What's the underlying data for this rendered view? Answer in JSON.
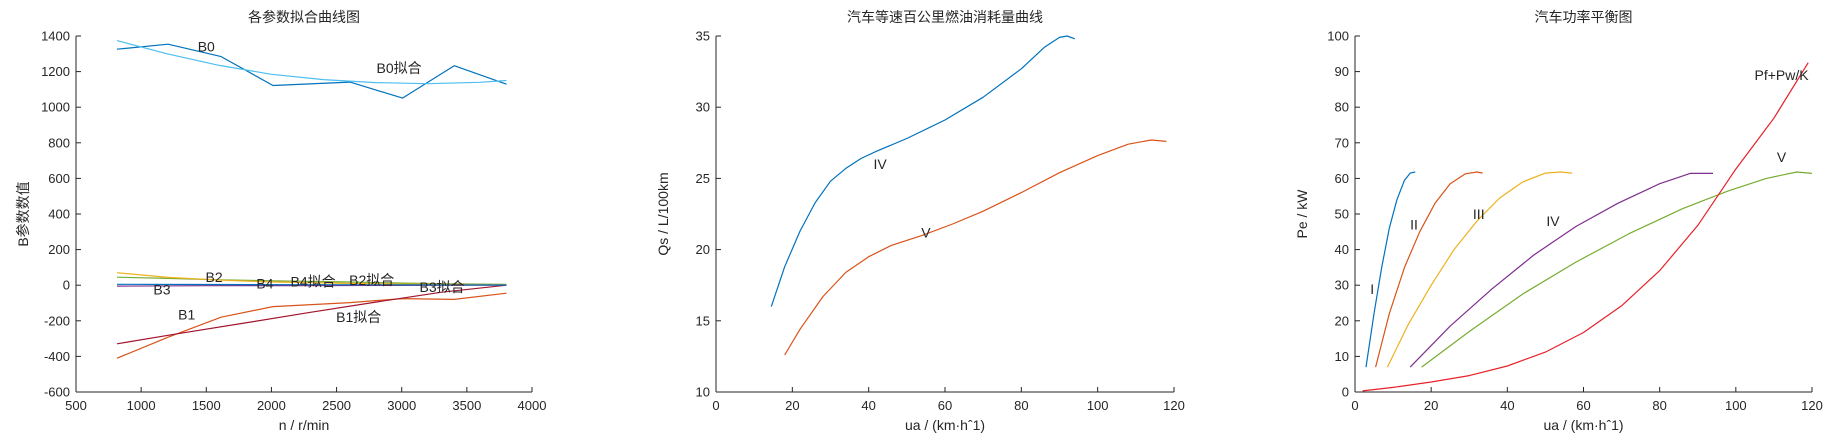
{
  "chart_data": [
    {
      "type": "line",
      "title": "各参数拟合曲线图",
      "xlabel": "n / r/min",
      "ylabel": "B参数数值",
      "xlim": [
        500,
        4000
      ],
      "ylim": [
        -600,
        1400
      ],
      "xticks": [
        500,
        1000,
        1500,
        2000,
        2500,
        3000,
        3500,
        4000
      ],
      "yticks": [
        -600,
        -400,
        -200,
        0,
        200,
        400,
        600,
        800,
        1000,
        1200,
        1400
      ],
      "grid": false,
      "legend": "none",
      "series": [
        {
          "color": "#0072BD",
          "points": [
            [
              815,
              1326
            ],
            [
              1207,
              1354
            ],
            [
              1614,
              1284
            ],
            [
              2012,
              1122
            ],
            [
              2603,
              1141
            ],
            [
              3006,
              1051
            ],
            [
              3403,
              1233
            ],
            [
              3804,
              1129
            ]
          ]
        },
        {
          "color": "#4DBEEE",
          "points": [
            [
              815,
              1374
            ],
            [
              1200,
              1300
            ],
            [
              1600,
              1235
            ],
            [
              2000,
              1185
            ],
            [
              2400,
              1155
            ],
            [
              2800,
              1138
            ],
            [
              3200,
              1132
            ],
            [
              3600,
              1140
            ],
            [
              3804,
              1150
            ]
          ]
        },
        {
          "color": "#D95319",
          "points": [
            [
              815,
              -410
            ],
            [
              1207,
              -292
            ],
            [
              1614,
              -180
            ],
            [
              2012,
              -120
            ],
            [
              2603,
              -98
            ],
            [
              3006,
              -75
            ],
            [
              3403,
              -80
            ],
            [
              3804,
              -45
            ]
          ]
        },
        {
          "color": "#A2142F",
          "points": [
            [
              815,
              -329
            ],
            [
              1300,
              -270
            ],
            [
              1800,
              -212
            ],
            [
              2300,
              -152
            ],
            [
              2800,
              -95
            ],
            [
              3300,
              -40
            ],
            [
              3804,
              0
            ]
          ]
        },
        {
          "color": "#7E2F8E",
          "points": [
            [
              815,
              -5
            ],
            [
              1500,
              -3
            ],
            [
              2200,
              -2
            ],
            [
              2900,
              -1
            ],
            [
              3804,
              0
            ]
          ]
        },
        {
          "color": "#77AC30",
          "points": [
            [
              815,
              45
            ],
            [
              1207,
              38
            ],
            [
              1614,
              30
            ],
            [
              2012,
              25
            ],
            [
              2603,
              18
            ],
            [
              3006,
              12
            ],
            [
              3403,
              8
            ],
            [
              3804,
              5
            ]
          ]
        },
        {
          "color": "#EDB120",
          "points": [
            [
              815,
              70
            ],
            [
              1207,
              44
            ],
            [
              1614,
              28
            ],
            [
              2012,
              18
            ],
            [
              2603,
              10
            ],
            [
              3006,
              6
            ],
            [
              3403,
              4
            ],
            [
              3804,
              2
            ]
          ]
        },
        {
          "color": "#0072BD",
          "points": [
            [
              815,
              5
            ],
            [
              1500,
              4
            ],
            [
              2200,
              3
            ],
            [
              2900,
              2
            ],
            [
              3804,
              1
            ]
          ]
        }
      ],
      "annotations": [
        {
          "text": "B0",
          "x": 1500,
          "y": 1340
        },
        {
          "text": "B0拟合",
          "x": 2980,
          "y": 1220
        },
        {
          "text": "B2",
          "x": 1560,
          "y": 45
        },
        {
          "text": "B4",
          "x": 1950,
          "y": 10
        },
        {
          "text": "B4拟合",
          "x": 2320,
          "y": 20
        },
        {
          "text": "B2拟合",
          "x": 2770,
          "y": 30
        },
        {
          "text": "B3",
          "x": 1160,
          "y": -25
        },
        {
          "text": "B3拟合",
          "x": 3310,
          "y": -10
        },
        {
          "text": "B1",
          "x": 1350,
          "y": -165
        },
        {
          "text": "B1拟合",
          "x": 2670,
          "y": -180
        }
      ]
    },
    {
      "type": "line",
      "title": "汽车等速百公里燃油消耗量曲线",
      "xlabel": "ua / (km·hˆ1)",
      "ylabel": "Qs / L/100km",
      "xlim": [
        0,
        120
      ],
      "ylim": [
        10,
        35
      ],
      "xticks": [
        0,
        20,
        40,
        60,
        80,
        100,
        120
      ],
      "yticks": [
        10,
        15,
        20,
        25,
        30,
        35
      ],
      "grid": false,
      "legend": "none",
      "series": [
        {
          "name": "IV",
          "color": "#0072BD",
          "points": [
            [
              14.5,
              16
            ],
            [
              18,
              18.8
            ],
            [
              22,
              21.3
            ],
            [
              26,
              23.3
            ],
            [
              30,
              24.8
            ],
            [
              34,
              25.7
            ],
            [
              38,
              26.4
            ],
            [
              42,
              26.9
            ],
            [
              50,
              27.8
            ],
            [
              60,
              29.1
            ],
            [
              70,
              30.7
            ],
            [
              80,
              32.7
            ],
            [
              86,
              34.2
            ],
            [
              90,
              34.9
            ],
            [
              92,
              35
            ],
            [
              94,
              34.8
            ]
          ]
        },
        {
          "name": "V",
          "color": "#D95319",
          "points": [
            [
              18,
              12.6
            ],
            [
              22,
              14.4
            ],
            [
              28,
              16.7
            ],
            [
              34,
              18.4
            ],
            [
              40,
              19.5
            ],
            [
              46,
              20.3
            ],
            [
              54,
              21.0
            ],
            [
              62,
              21.8
            ],
            [
              70,
              22.7
            ],
            [
              80,
              24.0
            ],
            [
              90,
              25.4
            ],
            [
              100,
              26.6
            ],
            [
              108,
              27.4
            ],
            [
              114,
              27.7
            ],
            [
              118,
              27.6
            ]
          ]
        }
      ],
      "annotations": [
        {
          "text": "IV",
          "x": 43,
          "y": 26
        },
        {
          "text": "V",
          "x": 55,
          "y": 21.2
        }
      ]
    },
    {
      "type": "line",
      "title": "汽车功率平衡图",
      "xlabel": "ua / (km·hˆ1)",
      "ylabel": "Pe / kW",
      "xlim": [
        0,
        120
      ],
      "ylim": [
        0,
        100
      ],
      "xticks": [
        0,
        20,
        40,
        60,
        80,
        100,
        120
      ],
      "yticks": [
        0,
        10,
        20,
        30,
        40,
        50,
        60,
        70,
        80,
        90,
        100
      ],
      "grid": false,
      "legend": "none",
      "series": [
        {
          "name": "I",
          "color": "#0072BD",
          "points": [
            [
              2.9,
              7
            ],
            [
              5,
              22
            ],
            [
              7,
              35
            ],
            [
              9,
              46
            ],
            [
              11,
              54
            ],
            [
              13,
              59.5
            ],
            [
              14.5,
              61.5
            ],
            [
              15.8,
              61.8
            ]
          ]
        },
        {
          "name": "II",
          "color": "#D95319",
          "points": [
            [
              5.4,
              7
            ],
            [
              9,
              22
            ],
            [
              13,
              35
            ],
            [
              17,
              45
            ],
            [
              21,
              53
            ],
            [
              25,
              58.5
            ],
            [
              29,
              61.3
            ],
            [
              32,
              61.8
            ],
            [
              33.5,
              61.5
            ]
          ]
        },
        {
          "name": "III",
          "color": "#EDB120",
          "points": [
            [
              8.5,
              7
            ],
            [
              14,
              19
            ],
            [
              20,
              30
            ],
            [
              26,
              40
            ],
            [
              32,
              48
            ],
            [
              38,
              54.5
            ],
            [
              44,
              59
            ],
            [
              50,
              61.5
            ],
            [
              54,
              61.8
            ],
            [
              57,
              61.5
            ]
          ]
        },
        {
          "name": "IV",
          "color": "#7E2F8E",
          "points": [
            [
              14.5,
              7
            ],
            [
              25,
              18.5
            ],
            [
              36,
              29
            ],
            [
              47,
              38.5
            ],
            [
              58,
              46.5
            ],
            [
              69,
              53
            ],
            [
              80,
              58.5
            ],
            [
              88,
              61.4
            ],
            [
              94,
              61.4
            ]
          ]
        },
        {
          "name": "V",
          "color": "#77AC30",
          "points": [
            [
              17.5,
              7
            ],
            [
              30,
              17
            ],
            [
              44,
              27.5
            ],
            [
              58,
              36.5
            ],
            [
              72,
              44.5
            ],
            [
              86,
              51.5
            ],
            [
              98,
              56.5
            ],
            [
              108,
              60
            ],
            [
              116,
              61.8
            ],
            [
              120,
              61.4
            ]
          ]
        },
        {
          "name": "Pf+Pw/K",
          "color": "#E8202A",
          "points": [
            [
              2,
              0.3
            ],
            [
              10,
              1.3
            ],
            [
              20,
              2.8
            ],
            [
              30,
              4.6
            ],
            [
              40,
              7.3
            ],
            [
              50,
              11.2
            ],
            [
              60,
              16.7
            ],
            [
              70,
              24.2
            ],
            [
              80,
              34.1
            ],
            [
              90,
              46.8
            ],
            [
              100,
              62.6
            ],
            [
              110,
              76.9
            ],
            [
              119,
              92.5
            ]
          ]
        }
      ],
      "annotations": [
        {
          "text": "I",
          "x": 4.5,
          "y": 29
        },
        {
          "text": "II",
          "x": 15.5,
          "y": 47
        },
        {
          "text": "III",
          "x": 32.5,
          "y": 50
        },
        {
          "text": "IV",
          "x": 52,
          "y": 48
        },
        {
          "text": "V",
          "x": 112,
          "y": 66
        },
        {
          "text": "Pf+Pw/K",
          "x": 112,
          "y": 89
        }
      ]
    }
  ]
}
